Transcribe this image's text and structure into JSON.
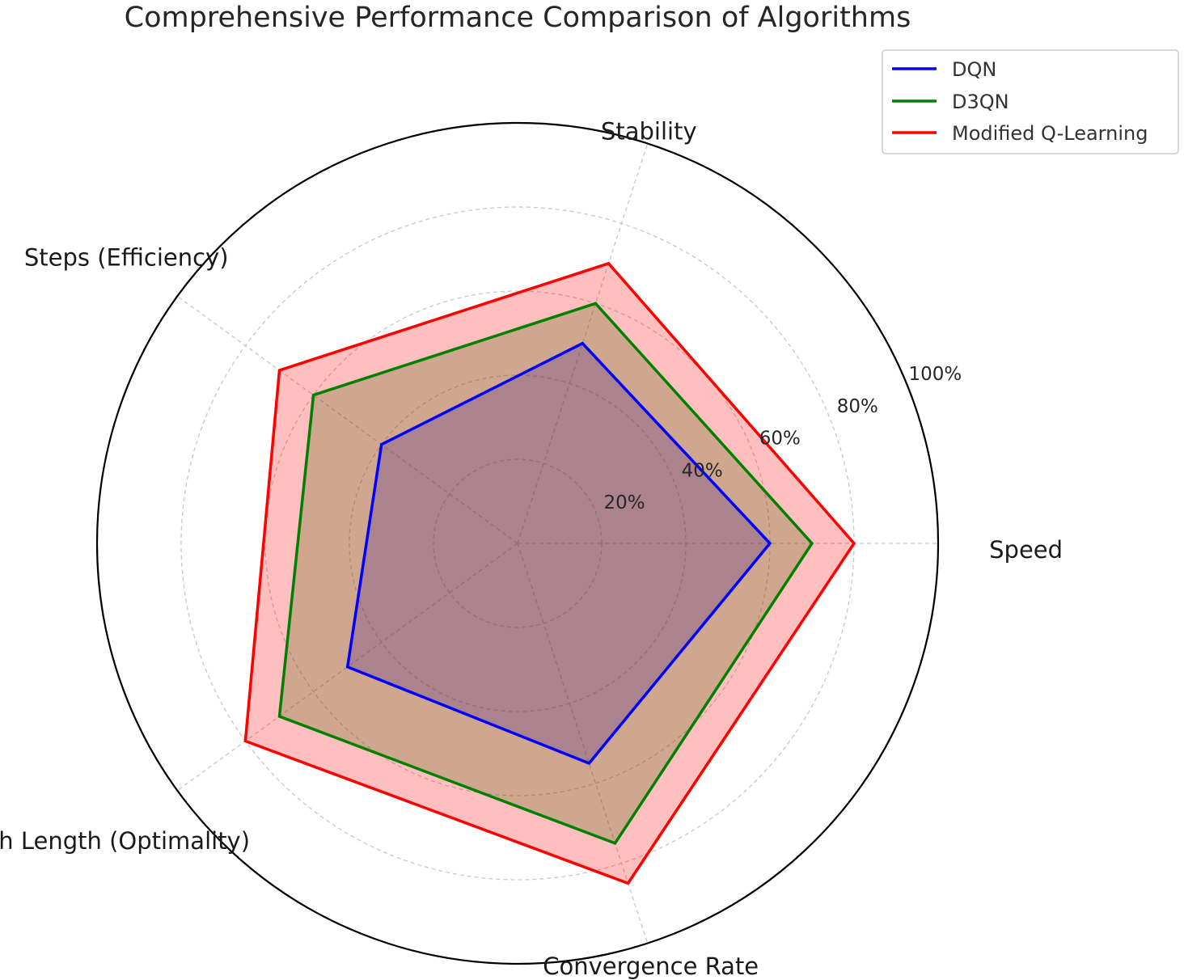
{
  "chart_data": {
    "type": "radar",
    "title": "Comprehensive Performance Comparison of Algorithms",
    "categories": [
      "Speed",
      "Stability",
      "Steps (Efficiency)",
      "Path Length (Optimality)",
      "Convergence Rate"
    ],
    "rlim": [
      0,
      100
    ],
    "r_ticks": [
      20,
      40,
      60,
      80,
      100
    ],
    "r_tick_labels": [
      "20%",
      "40%",
      "60%",
      "80%",
      "100%"
    ],
    "grid": true,
    "legend_position": "top-right",
    "series": [
      {
        "name": "DQN",
        "values": [
          60,
          50,
          40,
          50,
          55
        ],
        "color": "#0000ff",
        "fill": "#0000ff",
        "fill_opacity": 0.25
      },
      {
        "name": "D3QN",
        "values": [
          70,
          60,
          60,
          70,
          75
        ],
        "color": "#008000",
        "fill": "#008000",
        "fill_opacity": 0.25
      },
      {
        "name": "Modified Q-Learning",
        "values": [
          80,
          70,
          70,
          80,
          85
        ],
        "color": "#ff0000",
        "fill": "#ff0000",
        "fill_opacity": 0.25
      }
    ]
  }
}
